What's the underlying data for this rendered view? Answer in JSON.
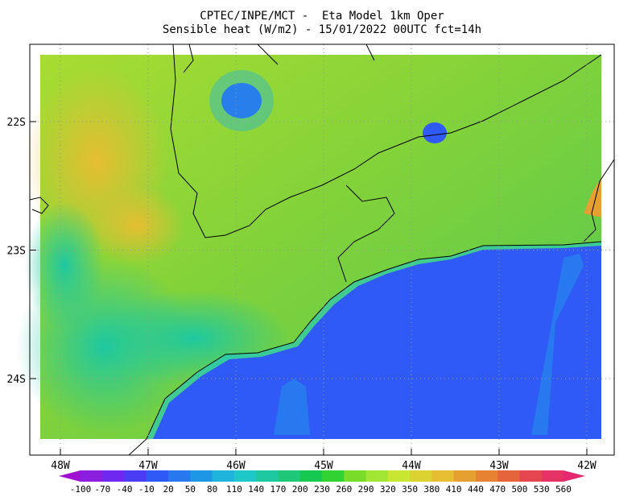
{
  "header": {
    "line1": "CPTEC/INPE/MCT -  Eta Model 1km Oper",
    "line2": "Sensible heat (W/m2) - 15/01/2022 00UTC fct=14h"
  },
  "map": {
    "lat_labels": [
      "22S",
      "23S",
      "24S"
    ],
    "lon_labels": [
      "48W",
      "47W",
      "46W",
      "45W",
      "44W",
      "43W",
      "42W"
    ]
  },
  "colorbar": {
    "labels": [
      -100,
      -70,
      -40,
      -10,
      20,
      50,
      80,
      110,
      140,
      170,
      200,
      230,
      260,
      290,
      320,
      350,
      380,
      410,
      440,
      470,
      500,
      530,
      560
    ],
    "colors": [
      "#a010d0",
      "#8c1ee0",
      "#6e28f0",
      "#4a3cf5",
      "#2f5af5",
      "#2878f0",
      "#1e96e6",
      "#1eb4dc",
      "#1ec8c8",
      "#1ec8a0",
      "#1ec878",
      "#14c850",
      "#32d232",
      "#78dc28",
      "#a0e632",
      "#c8e632",
      "#dcd232",
      "#e6be32",
      "#e6a032",
      "#e68232",
      "#e6643c",
      "#e64650",
      "#e63264",
      "#e6286e"
    ]
  }
}
